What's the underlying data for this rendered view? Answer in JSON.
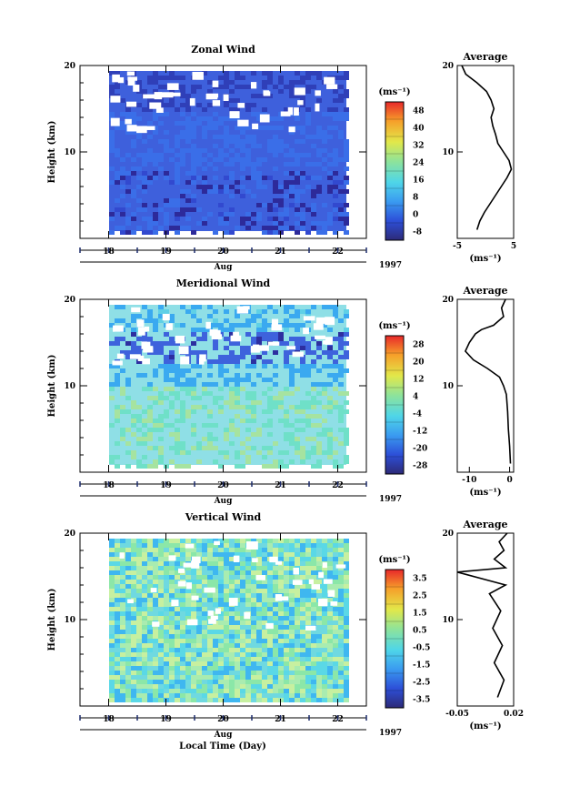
{
  "figure": {
    "xlabel_bottom": "Local Time (Day)",
    "year": "1997",
    "month_label": "Aug",
    "colorbar_unit": "(ms⁻¹)",
    "avg_unit": "(ms⁻¹)",
    "avg_title": "Average"
  },
  "chart_data": [
    {
      "type": "heatmap",
      "title": "Zonal Wind",
      "ylabel": "Height (km)",
      "xlabel": "Aug",
      "x_ticks": [
        "18",
        "19",
        "20",
        "21",
        "22"
      ],
      "x_range": [
        17.5,
        22.5
      ],
      "y_ticks": [
        "10",
        "20"
      ],
      "y_range": [
        0,
        20
      ],
      "colorbar": {
        "unit": "(ms⁻¹)",
        "ticks": [
          "-8",
          "0",
          "8",
          "16",
          "24",
          "32",
          "40",
          "48"
        ],
        "range": [
          -8,
          48
        ]
      },
      "average": {
        "title": "Average",
        "x_ticks": [
          "-5",
          "5"
        ],
        "x_range": [
          -5,
          5
        ],
        "profile": [
          [
            -1.5,
            1
          ],
          [
            -1,
            2
          ],
          [
            -0.2,
            3
          ],
          [
            0.8,
            4
          ],
          [
            1.8,
            5
          ],
          [
            2.8,
            6
          ],
          [
            3.8,
            7
          ],
          [
            4.6,
            8
          ],
          [
            4.2,
            9
          ],
          [
            3.2,
            10
          ],
          [
            2.2,
            11
          ],
          [
            1.8,
            12
          ],
          [
            1.3,
            13
          ],
          [
            1.0,
            14
          ],
          [
            1.5,
            15
          ],
          [
            1.0,
            16
          ],
          [
            0.2,
            17
          ],
          [
            -1.5,
            18
          ],
          [
            -3.5,
            19
          ],
          [
            -4.2,
            20
          ]
        ]
      }
    },
    {
      "type": "heatmap",
      "title": "Meridional Wind",
      "ylabel": "Height (km)",
      "xlabel": "Aug",
      "x_ticks": [
        "18",
        "19",
        "20",
        "21",
        "22"
      ],
      "x_range": [
        17.5,
        22.5
      ],
      "y_ticks": [
        "10",
        "20"
      ],
      "y_range": [
        0,
        20
      ],
      "colorbar": {
        "unit": "(ms⁻¹)",
        "ticks": [
          "-28",
          "-20",
          "-12",
          "-4",
          "4",
          "12",
          "20",
          "28"
        ],
        "range": [
          -28,
          28
        ]
      },
      "average": {
        "title": "Average",
        "x_ticks": [
          "-10",
          "0"
        ],
        "x_range": [
          -13,
          1
        ],
        "profile": [
          [
            0.2,
            1
          ],
          [
            0,
            3
          ],
          [
            -0.3,
            5
          ],
          [
            -0.5,
            7
          ],
          [
            -0.8,
            9
          ],
          [
            -1.5,
            10
          ],
          [
            -2.5,
            11
          ],
          [
            -5.5,
            12
          ],
          [
            -9,
            13
          ],
          [
            -11,
            14
          ],
          [
            -10,
            15
          ],
          [
            -8.5,
            16
          ],
          [
            -7,
            16.5
          ],
          [
            -4,
            17
          ],
          [
            -1.5,
            18
          ],
          [
            -2,
            19
          ],
          [
            -1,
            20
          ]
        ]
      }
    },
    {
      "type": "heatmap",
      "title": "Vertical Wind",
      "ylabel": "Height (km)",
      "xlabel": "Aug",
      "x_ticks": [
        "18",
        "19",
        "20",
        "21",
        "22"
      ],
      "x_range": [
        17.5,
        22.5
      ],
      "y_ticks": [
        "10",
        "20"
      ],
      "y_range": [
        0,
        20
      ],
      "colorbar": {
        "unit": "(ms⁻¹)",
        "ticks": [
          "-3.5",
          "-2.5",
          "-1.5",
          "-0.5",
          "0.5",
          "1.5",
          "2.5",
          "3.5"
        ],
        "range": [
          -3.5,
          3.5
        ]
      },
      "average": {
        "title": "Average",
        "x_ticks": [
          "-0.05",
          "0.02"
        ],
        "x_range": [
          -0.05,
          0.02
        ],
        "profile": [
          [
            0,
            1
          ],
          [
            0.008,
            3
          ],
          [
            -0.004,
            5
          ],
          [
            0.006,
            7
          ],
          [
            -0.006,
            9
          ],
          [
            0.004,
            11
          ],
          [
            -0.01,
            13
          ],
          [
            0.01,
            14
          ],
          [
            -0.05,
            15.5
          ],
          [
            0.01,
            16
          ],
          [
            -0.004,
            17
          ],
          [
            0.008,
            18
          ],
          [
            0.002,
            19
          ],
          [
            0.012,
            20
          ]
        ]
      }
    }
  ]
}
